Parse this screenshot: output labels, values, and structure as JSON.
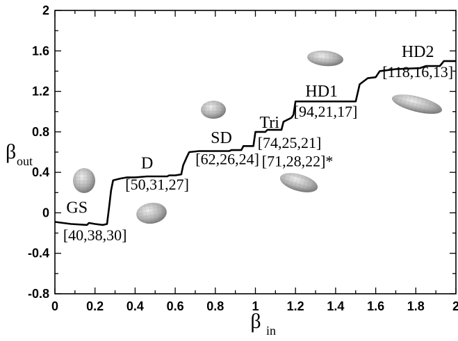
{
  "chart_data": {
    "type": "line",
    "title": "",
    "xlabel": {
      "main": "β",
      "sub": "in"
    },
    "ylabel": {
      "main": "β",
      "sub": "out"
    },
    "xlim": [
      0,
      2
    ],
    "ylim": [
      -0.8,
      2
    ],
    "grid": false,
    "xticks": [
      {
        "value": 0,
        "label": "0"
      },
      {
        "value": 0.2,
        "label": "0.2"
      },
      {
        "value": 0.4,
        "label": "0.4"
      },
      {
        "value": 0.6,
        "label": "0.6"
      },
      {
        "value": 0.8,
        "label": "0.8"
      },
      {
        "value": 1.0,
        "label": "1"
      },
      {
        "value": 1.2,
        "label": "1.2"
      },
      {
        "value": 1.4,
        "label": "1.4"
      },
      {
        "value": 1.6,
        "label": "1.6"
      },
      {
        "value": 1.8,
        "label": "1.8"
      },
      {
        "value": 2.0,
        "label": "2"
      }
    ],
    "yticks": [
      {
        "value": -0.8,
        "label": "-0.8"
      },
      {
        "value": -0.4,
        "label": "-0.4"
      },
      {
        "value": 0,
        "label": "0"
      },
      {
        "value": 0.4,
        "label": "0.4"
      },
      {
        "value": 0.8,
        "label": "0.8"
      },
      {
        "value": 1.2,
        "label": "1.2"
      },
      {
        "value": 1.6,
        "label": "1.6"
      },
      {
        "value": 2.0,
        "label": "2"
      }
    ],
    "series": [
      {
        "points": [
          [
            0.0,
            -0.09
          ],
          [
            0.08,
            -0.11
          ],
          [
            0.16,
            -0.12
          ],
          [
            0.17,
            -0.1
          ],
          [
            0.2,
            -0.11
          ],
          [
            0.24,
            -0.12
          ],
          [
            0.26,
            -0.11
          ],
          [
            0.27,
            0.05
          ],
          [
            0.28,
            0.22
          ],
          [
            0.29,
            0.32
          ],
          [
            0.31,
            0.33
          ],
          [
            0.33,
            0.34
          ],
          [
            0.36,
            0.35
          ],
          [
            0.4,
            0.35
          ],
          [
            0.46,
            0.36
          ],
          [
            0.56,
            0.36
          ],
          [
            0.57,
            0.37
          ],
          [
            0.6,
            0.37
          ],
          [
            0.63,
            0.38
          ],
          [
            0.64,
            0.47
          ],
          [
            0.66,
            0.56
          ],
          [
            0.67,
            0.6
          ],
          [
            0.72,
            0.61
          ],
          [
            0.8,
            0.61
          ],
          [
            0.87,
            0.61
          ],
          [
            0.88,
            0.62
          ],
          [
            0.93,
            0.62
          ],
          [
            0.94,
            0.66
          ],
          [
            0.99,
            0.66
          ],
          [
            1.0,
            0.8
          ],
          [
            1.05,
            0.8
          ],
          [
            1.06,
            0.82
          ],
          [
            1.13,
            0.82
          ],
          [
            1.14,
            0.9
          ],
          [
            1.18,
            0.94
          ],
          [
            1.19,
            0.97
          ],
          [
            1.2,
            1.1
          ],
          [
            1.3,
            1.1
          ],
          [
            1.4,
            1.1
          ],
          [
            1.5,
            1.1
          ],
          [
            1.52,
            1.27
          ],
          [
            1.54,
            1.3
          ],
          [
            1.56,
            1.33
          ],
          [
            1.6,
            1.34
          ],
          [
            1.62,
            1.4
          ],
          [
            1.7,
            1.42
          ],
          [
            1.82,
            1.43
          ],
          [
            1.85,
            1.45
          ],
          [
            1.92,
            1.45
          ],
          [
            1.94,
            1.5
          ],
          [
            2.0,
            1.5
          ]
        ]
      }
    ],
    "annotations": [
      {
        "text": "GS",
        "x": 0.11,
        "y": 0.0,
        "size": 24
      },
      {
        "text": "[40,38,30]",
        "x": 0.2,
        "y": -0.27,
        "size": 22
      },
      {
        "text": "D",
        "x": 0.46,
        "y": 0.44,
        "size": 24
      },
      {
        "text": "[50,31,27]",
        "x": 0.51,
        "y": 0.23,
        "size": 22
      },
      {
        "text": "SD",
        "x": 0.83,
        "y": 0.69,
        "size": 24
      },
      {
        "text": "[62,26,24]",
        "x": 0.86,
        "y": 0.48,
        "size": 22
      },
      {
        "text": "Tri",
        "x": 1.07,
        "y": 0.84,
        "size": 24
      },
      {
        "text": "[74,25,21]",
        "x": 1.17,
        "y": 0.64,
        "size": 22
      },
      {
        "text": "[71,28,22]*",
        "x": 1.21,
        "y": 0.46,
        "size": 22
      },
      {
        "text": "HD1",
        "x": 1.33,
        "y": 1.15,
        "size": 24
      },
      {
        "text": "[94,21,17]",
        "x": 1.35,
        "y": 0.95,
        "size": 22
      },
      {
        "text": "HD2",
        "x": 1.81,
        "y": 1.54,
        "size": 24
      },
      {
        "text": "[118,16,13]",
        "x": 1.81,
        "y": 1.34,
        "size": 22
      }
    ]
  }
}
